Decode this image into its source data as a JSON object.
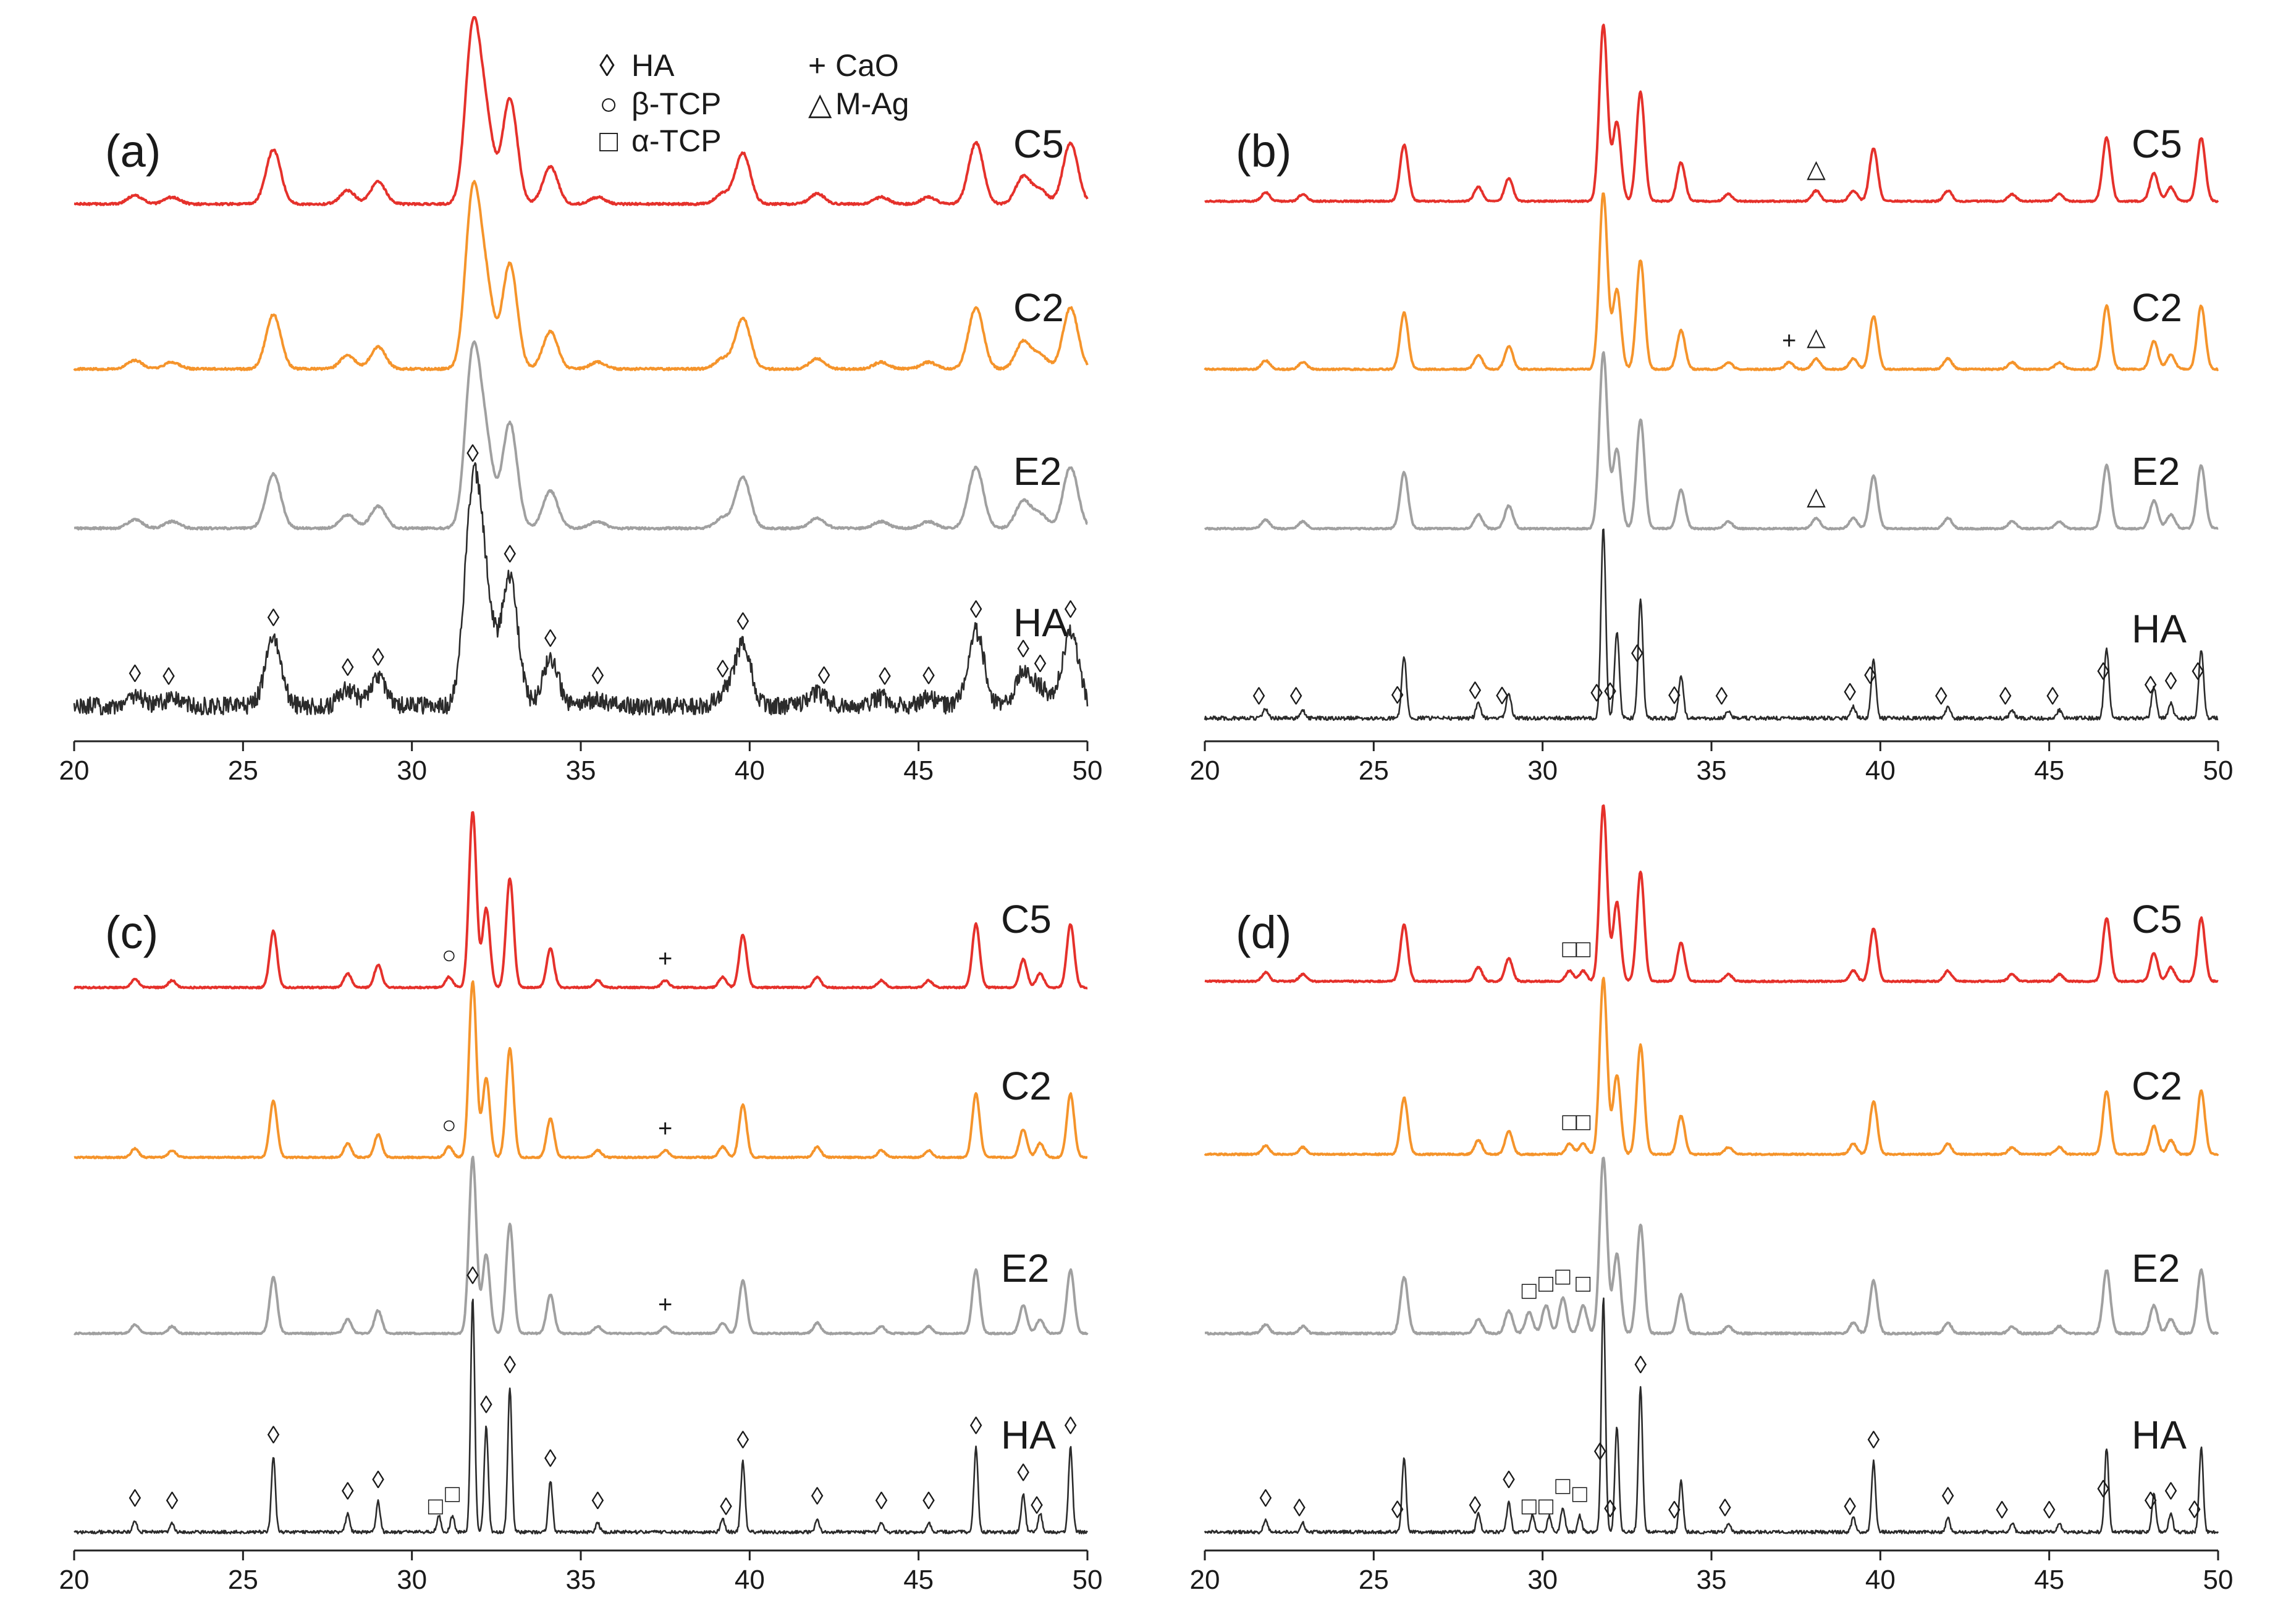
{
  "chart_data": {
    "type": "line",
    "title": "",
    "xlabel": "",
    "ylabel": "",
    "xlim": [
      20,
      50
    ],
    "x_ticks": [
      "20",
      "25",
      "30",
      "35",
      "40",
      "45",
      "50"
    ],
    "legend": [
      {
        "symbol": "◊",
        "label": "HA"
      },
      {
        "symbol": "○",
        "label": "β-TCP"
      },
      {
        "symbol": "□",
        "label": "α-TCP"
      },
      {
        "symbol": "+",
        "label": "CaO"
      },
      {
        "symbol": "△",
        "label": "M-Ag"
      }
    ],
    "legend_position": "top-center",
    "series_colors": {
      "C5": "#e5312b",
      "C2": "#f5942b",
      "E2": "#a0a0a0",
      "HA": "#2b2b2b"
    },
    "panels": [
      {
        "label": "(a)",
        "series": [
          {
            "name": "C5",
            "baseline": 0.09,
            "height": 1.0,
            "width": 0.22,
            "noise": 0.006,
            "extra": [],
            "markers": []
          },
          {
            "name": "C2",
            "baseline": 0.09,
            "height": 1.0,
            "width": 0.22,
            "noise": 0.006,
            "extra": [],
            "markers": []
          },
          {
            "name": "E2",
            "baseline": 0.09,
            "height": 1.0,
            "width": 0.22,
            "noise": 0.006,
            "extra": [],
            "markers": []
          },
          {
            "name": "HA",
            "baseline": 0.1,
            "height": 1.05,
            "width": 0.24,
            "noise": 0.045,
            "extra": [],
            "markers": [
              {
                "type": "HA",
                "x": [
                  21.8,
                  22.8,
                  25.9,
                  28.1,
                  29.0,
                  31.8,
                  32.9,
                  34.1,
                  35.5,
                  39.2,
                  39.8,
                  42.2,
                  44.0,
                  45.3,
                  46.7,
                  48.1,
                  48.6,
                  49.5
                ]
              }
            ]
          }
        ]
      },
      {
        "label": "(b)",
        "series": [
          {
            "name": "C5",
            "baseline": 0.05,
            "height": 1.0,
            "width": 0.12,
            "noise": 0.004,
            "extra": [
              [
                38.1,
                0.015
              ]
            ],
            "markers": [
              {
                "type": "M-Ag",
                "x": [
                  38.1
                ]
              }
            ]
          },
          {
            "name": "C2",
            "baseline": 0.05,
            "height": 1.0,
            "width": 0.12,
            "noise": 0.004,
            "extra": [
              [
                37.3,
                0.01
              ],
              [
                38.1,
                0.015
              ]
            ],
            "markers": [
              {
                "type": "CaO",
                "x": [
                  37.3
                ]
              },
              {
                "type": "M-Ag",
                "x": [
                  38.1
                ]
              }
            ]
          },
          {
            "name": "E2",
            "baseline": 0.05,
            "height": 1.0,
            "width": 0.12,
            "noise": 0.004,
            "extra": [
              [
                38.1,
                0.015
              ]
            ],
            "markers": [
              {
                "type": "M-Ag",
                "x": [
                  38.1
                ]
              }
            ]
          },
          {
            "name": "HA",
            "baseline": 0.04,
            "height": 1.0,
            "width": 0.07,
            "noise": 0.01,
            "extra": [],
            "markers": [
              {
                "type": "HA",
                "x": [
                  21.6,
                  22.7,
                  25.7,
                  28.0,
                  28.8,
                  31.6,
                  32.0,
                  32.8,
                  33.9,
                  35.3,
                  39.1,
                  39.7,
                  41.8,
                  43.7,
                  45.1,
                  46.6,
                  48.0,
                  48.6,
                  49.4
                ]
              }
            ]
          }
        ]
      },
      {
        "label": "(c)",
        "series": [
          {
            "name": "C5",
            "baseline": 0.04,
            "height": 1.0,
            "width": 0.11,
            "noise": 0.004,
            "extra": [
              [
                31.1,
                0.015
              ],
              [
                37.5,
                0.01
              ]
            ],
            "markers": [
              {
                "type": "β-TCP",
                "x": [
                  31.1
                ]
              },
              {
                "type": "CaO",
                "x": [
                  37.5
                ]
              }
            ]
          },
          {
            "name": "C2",
            "baseline": 0.04,
            "height": 1.0,
            "width": 0.11,
            "noise": 0.004,
            "extra": [
              [
                31.1,
                0.015
              ],
              [
                37.5,
                0.01
              ]
            ],
            "markers": [
              {
                "type": "β-TCP",
                "x": [
                  31.1
                ]
              },
              {
                "type": "CaO",
                "x": [
                  37.5
                ]
              }
            ]
          },
          {
            "name": "E2",
            "baseline": 0.04,
            "height": 1.0,
            "width": 0.11,
            "noise": 0.004,
            "extra": [
              [
                37.5,
                0.01
              ]
            ],
            "markers": [
              {
                "type": "CaO",
                "x": [
                  37.5
                ]
              }
            ]
          },
          {
            "name": "HA",
            "baseline": 0.03,
            "height": 1.15,
            "width": 0.06,
            "noise": 0.008,
            "extra": [
              [
                30.8,
                0.02
              ],
              [
                31.2,
                0.02
              ]
            ],
            "markers": [
              {
                "type": "HA",
                "x": [
                  21.8,
                  22.9,
                  25.9,
                  28.1,
                  29.0,
                  31.8,
                  32.2,
                  32.9,
                  34.1,
                  35.5,
                  39.3,
                  39.8,
                  42.0,
                  43.9,
                  45.3,
                  46.7,
                  48.1,
                  48.5,
                  49.5
                ]
              },
              {
                "type": "α-TCP",
                "x": [
                  30.7,
                  31.2
                ]
              }
            ]
          }
        ]
      },
      {
        "label": "(d)",
        "series": [
          {
            "name": "C5",
            "baseline": 0.04,
            "height": 1.0,
            "width": 0.11,
            "noise": 0.004,
            "extra": [
              [
                30.8,
                0.015
              ],
              [
                31.2,
                0.015
              ]
            ],
            "markers": [
              {
                "type": "α-TCP",
                "x": [
                  30.8,
                  31.2
                ]
              }
            ]
          },
          {
            "name": "C2",
            "baseline": 0.04,
            "height": 1.0,
            "width": 0.11,
            "noise": 0.004,
            "extra": [
              [
                30.8,
                0.015
              ],
              [
                31.2,
                0.015
              ]
            ],
            "markers": [
              {
                "type": "α-TCP",
                "x": [
                  30.8,
                  31.2
                ]
              }
            ]
          },
          {
            "name": "E2",
            "baseline": 0.04,
            "height": 1.0,
            "width": 0.11,
            "noise": 0.005,
            "extra": [
              [
                29.6,
                0.03
              ],
              [
                30.1,
                0.04
              ],
              [
                30.6,
                0.05
              ],
              [
                31.2,
                0.04
              ]
            ],
            "markers": [
              {
                "type": "α-TCP",
                "x": [
                  29.6,
                  30.1,
                  30.6,
                  31.2
                ]
              }
            ]
          },
          {
            "name": "HA",
            "baseline": 0.03,
            "height": 1.15,
            "width": 0.06,
            "noise": 0.008,
            "extra": [
              [
                29.7,
                0.02
              ],
              [
                30.2,
                0.02
              ],
              [
                30.6,
                0.03
              ],
              [
                31.1,
                0.02
              ]
            ],
            "markers": [
              {
                "type": "HA",
                "x": [
                  21.8,
                  22.8,
                  25.7,
                  28.0,
                  29.0,
                  31.7,
                  32.0,
                  32.9,
                  33.9,
                  35.4,
                  39.1,
                  39.8,
                  42.0,
                  43.6,
                  45.0,
                  46.6,
                  48.0,
                  48.6,
                  49.3
                ]
              },
              {
                "type": "α-TCP",
                "x": [
                  29.6,
                  30.1,
                  30.6,
                  31.1
                ]
              }
            ]
          }
        ]
      }
    ],
    "ha_reference_peaks": [
      [
        21.8,
        0.05
      ],
      [
        22.9,
        0.04
      ],
      [
        25.9,
        0.32
      ],
      [
        28.1,
        0.08
      ],
      [
        29.0,
        0.13
      ],
      [
        31.8,
        1.0
      ],
      [
        32.2,
        0.45
      ],
      [
        32.9,
        0.62
      ],
      [
        34.1,
        0.22
      ],
      [
        35.5,
        0.04
      ],
      [
        39.2,
        0.06
      ],
      [
        39.8,
        0.3
      ],
      [
        42.0,
        0.06
      ],
      [
        43.9,
        0.04
      ],
      [
        45.3,
        0.04
      ],
      [
        46.7,
        0.36
      ],
      [
        48.1,
        0.16
      ],
      [
        48.6,
        0.08
      ],
      [
        49.5,
        0.36
      ]
    ]
  }
}
